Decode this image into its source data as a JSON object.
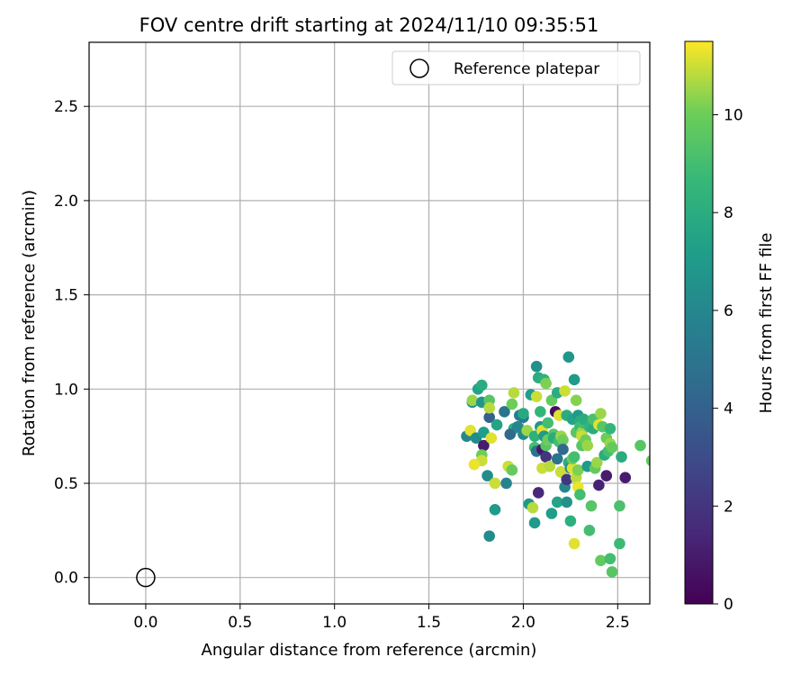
{
  "chart_data": {
    "type": "scatter",
    "title": "FOV centre drift starting at 2024/11/10 09:35:51",
    "xlabel": "Angular distance from reference (arcmin)",
    "ylabel": "Rotation from reference (arcmin)",
    "xlim": [
      -0.3,
      2.67
    ],
    "ylim": [
      -0.14,
      2.84
    ],
    "xticks": [
      0.0,
      0.5,
      1.0,
      1.5,
      2.0,
      2.5
    ],
    "xtick_labels": [
      "0.0",
      "0.5",
      "1.0",
      "1.5",
      "2.0",
      "2.5"
    ],
    "yticks": [
      0.0,
      0.5,
      1.0,
      1.5,
      2.0,
      2.5
    ],
    "ytick_labels": [
      "0.0",
      "0.5",
      "1.0",
      "1.5",
      "2.0",
      "2.5"
    ],
    "grid": true,
    "legend": {
      "placement": "top-right",
      "entries": [
        "Reference platepar"
      ]
    },
    "reference_point": {
      "name": "Reference platepar",
      "x": 0.0,
      "y": 0.0,
      "marker": "open-circle",
      "color": "#000000"
    },
    "colorbar": {
      "label": "Hours from first FF file",
      "range": [
        0,
        11.5
      ],
      "ticks": [
        0,
        2,
        4,
        6,
        8,
        10
      ],
      "tick_labels": [
        "0",
        "2",
        "4",
        "6",
        "8",
        "10"
      ],
      "colormap": "viridis"
    },
    "points": [
      {
        "x": 1.7,
        "y": 0.75,
        "h": 6.0
      },
      {
        "x": 1.73,
        "y": 0.93,
        "h": 6.5
      },
      {
        "x": 1.73,
        "y": 0.94,
        "h": 10.5
      },
      {
        "x": 1.72,
        "y": 0.78,
        "h": 11.2
      },
      {
        "x": 1.75,
        "y": 0.74,
        "h": 6.2
      },
      {
        "x": 1.76,
        "y": 1.0,
        "h": 7.5
      },
      {
        "x": 1.78,
        "y": 1.02,
        "h": 8.0
      },
      {
        "x": 1.78,
        "y": 0.93,
        "h": 6.8
      },
      {
        "x": 1.79,
        "y": 0.77,
        "h": 7.2
      },
      {
        "x": 1.79,
        "y": 0.7,
        "h": 1.0
      },
      {
        "x": 1.78,
        "y": 0.65,
        "h": 10.0
      },
      {
        "x": 1.78,
        "y": 0.62,
        "h": 11.0
      },
      {
        "x": 1.74,
        "y": 0.6,
        "h": 11.3
      },
      {
        "x": 1.82,
        "y": 0.94,
        "h": 9.5
      },
      {
        "x": 1.82,
        "y": 0.85,
        "h": 4.0
      },
      {
        "x": 1.82,
        "y": 0.9,
        "h": 10.8
      },
      {
        "x": 1.83,
        "y": 0.74,
        "h": 11.2
      },
      {
        "x": 1.81,
        "y": 0.54,
        "h": 6.3
      },
      {
        "x": 1.86,
        "y": 0.81,
        "h": 7.5
      },
      {
        "x": 1.85,
        "y": 0.5,
        "h": 11.0
      },
      {
        "x": 1.85,
        "y": 0.36,
        "h": 7.0
      },
      {
        "x": 1.82,
        "y": 0.22,
        "h": 6.2
      },
      {
        "x": 1.9,
        "y": 0.88,
        "h": 5.0
      },
      {
        "x": 1.92,
        "y": 0.59,
        "h": 11.0
      },
      {
        "x": 1.91,
        "y": 0.5,
        "h": 5.8
      },
      {
        "x": 1.94,
        "y": 0.92,
        "h": 10.0
      },
      {
        "x": 1.95,
        "y": 0.98,
        "h": 10.8
      },
      {
        "x": 1.95,
        "y": 0.79,
        "h": 8.0
      },
      {
        "x": 1.93,
        "y": 0.76,
        "h": 4.5
      },
      {
        "x": 1.94,
        "y": 0.57,
        "h": 9.8
      },
      {
        "x": 1.97,
        "y": 0.8,
        "h": 6.0
      },
      {
        "x": 1.98,
        "y": 0.86,
        "h": 5.5
      },
      {
        "x": 2.0,
        "y": 0.85,
        "h": 5.2
      },
      {
        "x": 2.0,
        "y": 0.76,
        "h": 6.0
      },
      {
        "x": 2.0,
        "y": 0.87,
        "h": 7.8
      },
      {
        "x": 2.02,
        "y": 0.78,
        "h": 10.5
      },
      {
        "x": 2.03,
        "y": 0.39,
        "h": 6.8
      },
      {
        "x": 2.04,
        "y": 0.97,
        "h": 7.2
      },
      {
        "x": 2.05,
        "y": 0.37,
        "h": 10.8
      },
      {
        "x": 2.06,
        "y": 0.29,
        "h": 7.0
      },
      {
        "x": 2.06,
        "y": 0.75,
        "h": 8.2
      },
      {
        "x": 2.06,
        "y": 0.69,
        "h": 9.0
      },
      {
        "x": 2.07,
        "y": 0.67,
        "h": 5.0
      },
      {
        "x": 2.07,
        "y": 0.96,
        "h": 11.0
      },
      {
        "x": 2.07,
        "y": 1.12,
        "h": 6.5
      },
      {
        "x": 2.08,
        "y": 1.06,
        "h": 8.0
      },
      {
        "x": 2.08,
        "y": 0.45,
        "h": 1.5
      },
      {
        "x": 2.09,
        "y": 0.88,
        "h": 8.5
      },
      {
        "x": 2.09,
        "y": 0.8,
        "h": 6.8
      },
      {
        "x": 2.1,
        "y": 0.78,
        "h": 11.2
      },
      {
        "x": 2.1,
        "y": 0.58,
        "h": 11.0
      },
      {
        "x": 2.1,
        "y": 0.68,
        "h": 0.8
      },
      {
        "x": 2.11,
        "y": 0.75,
        "h": 7.0
      },
      {
        "x": 2.11,
        "y": 1.05,
        "h": 8.3
      },
      {
        "x": 2.12,
        "y": 0.64,
        "h": 2.0
      },
      {
        "x": 2.12,
        "y": 1.03,
        "h": 10.2
      },
      {
        "x": 2.12,
        "y": 0.7,
        "h": 9.5
      },
      {
        "x": 2.13,
        "y": 0.82,
        "h": 9.0
      },
      {
        "x": 2.13,
        "y": 0.73,
        "h": 10.0
      },
      {
        "x": 2.14,
        "y": 0.59,
        "h": 10.8
      },
      {
        "x": 2.15,
        "y": 0.94,
        "h": 9.8
      },
      {
        "x": 2.15,
        "y": 0.34,
        "h": 7.2
      },
      {
        "x": 2.16,
        "y": 0.76,
        "h": 9.5
      },
      {
        "x": 2.16,
        "y": 0.74,
        "h": 8.0
      },
      {
        "x": 2.17,
        "y": 0.88,
        "h": 0.5
      },
      {
        "x": 2.18,
        "y": 0.98,
        "h": 8.0
      },
      {
        "x": 2.18,
        "y": 0.4,
        "h": 7.5
      },
      {
        "x": 2.18,
        "y": 0.63,
        "h": 5.0
      },
      {
        "x": 2.19,
        "y": 0.72,
        "h": 9.0
      },
      {
        "x": 2.19,
        "y": 0.86,
        "h": 11.2
      },
      {
        "x": 2.2,
        "y": 0.56,
        "h": 1.2
      },
      {
        "x": 2.2,
        "y": 0.56,
        "h": 11.0
      },
      {
        "x": 2.2,
        "y": 0.75,
        "h": 10.5
      },
      {
        "x": 2.21,
        "y": 0.73,
        "h": 10.0
      },
      {
        "x": 2.21,
        "y": 0.68,
        "h": 4.5
      },
      {
        "x": 2.22,
        "y": 0.99,
        "h": 11.0
      },
      {
        "x": 2.22,
        "y": 0.48,
        "h": 6.0
      },
      {
        "x": 2.23,
        "y": 0.4,
        "h": 6.5
      },
      {
        "x": 2.23,
        "y": 0.86,
        "h": 8.0
      },
      {
        "x": 2.23,
        "y": 0.52,
        "h": 2.0
      },
      {
        "x": 2.24,
        "y": 1.17,
        "h": 6.8
      },
      {
        "x": 2.24,
        "y": 0.61,
        "h": 8.0
      },
      {
        "x": 2.25,
        "y": 0.3,
        "h": 8.2
      },
      {
        "x": 2.25,
        "y": 0.58,
        "h": 6.0
      },
      {
        "x": 2.26,
        "y": 0.84,
        "h": 7.5
      },
      {
        "x": 2.26,
        "y": 0.58,
        "h": 11.2
      },
      {
        "x": 2.26,
        "y": 0.63,
        "h": 10.0
      },
      {
        "x": 2.27,
        "y": 1.05,
        "h": 7.0
      },
      {
        "x": 2.27,
        "y": 0.18,
        "h": 11.2
      },
      {
        "x": 2.27,
        "y": 0.64,
        "h": 9.0
      },
      {
        "x": 2.28,
        "y": 0.94,
        "h": 10.3
      },
      {
        "x": 2.28,
        "y": 0.77,
        "h": 9.5
      },
      {
        "x": 2.28,
        "y": 0.53,
        "h": 10.8
      },
      {
        "x": 2.29,
        "y": 0.48,
        "h": 11.3
      },
      {
        "x": 2.29,
        "y": 0.57,
        "h": 10.2
      },
      {
        "x": 2.29,
        "y": 0.86,
        "h": 7.0
      },
      {
        "x": 2.3,
        "y": 0.44,
        "h": 9.0
      },
      {
        "x": 2.3,
        "y": 0.83,
        "h": 8.0
      },
      {
        "x": 2.3,
        "y": 0.8,
        "h": 8.8
      },
      {
        "x": 2.31,
        "y": 0.77,
        "h": 10.5
      },
      {
        "x": 2.31,
        "y": 0.75,
        "h": 11.0
      },
      {
        "x": 2.31,
        "y": 0.7,
        "h": 9.5
      },
      {
        "x": 2.32,
        "y": 0.82,
        "h": 9.0
      },
      {
        "x": 2.32,
        "y": 0.84,
        "h": 8.0
      },
      {
        "x": 2.33,
        "y": 0.73,
        "h": 10.0
      },
      {
        "x": 2.34,
        "y": 0.59,
        "h": 7.0
      },
      {
        "x": 2.34,
        "y": 0.7,
        "h": 10.5
      },
      {
        "x": 2.35,
        "y": 0.25,
        "h": 9.0
      },
      {
        "x": 2.35,
        "y": 0.8,
        "h": 8.5
      },
      {
        "x": 2.36,
        "y": 0.38,
        "h": 9.5
      },
      {
        "x": 2.37,
        "y": 0.79,
        "h": 8.0
      },
      {
        "x": 2.37,
        "y": 0.84,
        "h": 9.2
      },
      {
        "x": 2.38,
        "y": 0.58,
        "h": 9.8
      },
      {
        "x": 2.39,
        "y": 0.61,
        "h": 10.5
      },
      {
        "x": 2.4,
        "y": 0.49,
        "h": 1.2
      },
      {
        "x": 2.4,
        "y": 0.81,
        "h": 11.2
      },
      {
        "x": 2.41,
        "y": 0.87,
        "h": 10.5
      },
      {
        "x": 2.41,
        "y": 0.09,
        "h": 9.8
      },
      {
        "x": 2.42,
        "y": 0.8,
        "h": 9.5
      },
      {
        "x": 2.43,
        "y": 0.65,
        "h": 8.0
      },
      {
        "x": 2.44,
        "y": 0.54,
        "h": 1.0
      },
      {
        "x": 2.44,
        "y": 0.74,
        "h": 10.0
      },
      {
        "x": 2.45,
        "y": 0.67,
        "h": 9.0
      },
      {
        "x": 2.46,
        "y": 0.71,
        "h": 10.5
      },
      {
        "x": 2.46,
        "y": 0.79,
        "h": 8.5
      },
      {
        "x": 2.46,
        "y": 0.1,
        "h": 9.0
      },
      {
        "x": 2.47,
        "y": 0.03,
        "h": 9.5
      },
      {
        "x": 2.47,
        "y": 0.69,
        "h": 9.8
      },
      {
        "x": 2.51,
        "y": 0.38,
        "h": 9.2
      },
      {
        "x": 2.51,
        "y": 0.18,
        "h": 8.8
      },
      {
        "x": 2.52,
        "y": 0.64,
        "h": 8.0
      },
      {
        "x": 2.54,
        "y": 0.53,
        "h": 1.0
      },
      {
        "x": 2.62,
        "y": 0.7,
        "h": 9.5
      },
      {
        "x": 2.68,
        "y": 0.62,
        "h": 9.8
      }
    ]
  }
}
